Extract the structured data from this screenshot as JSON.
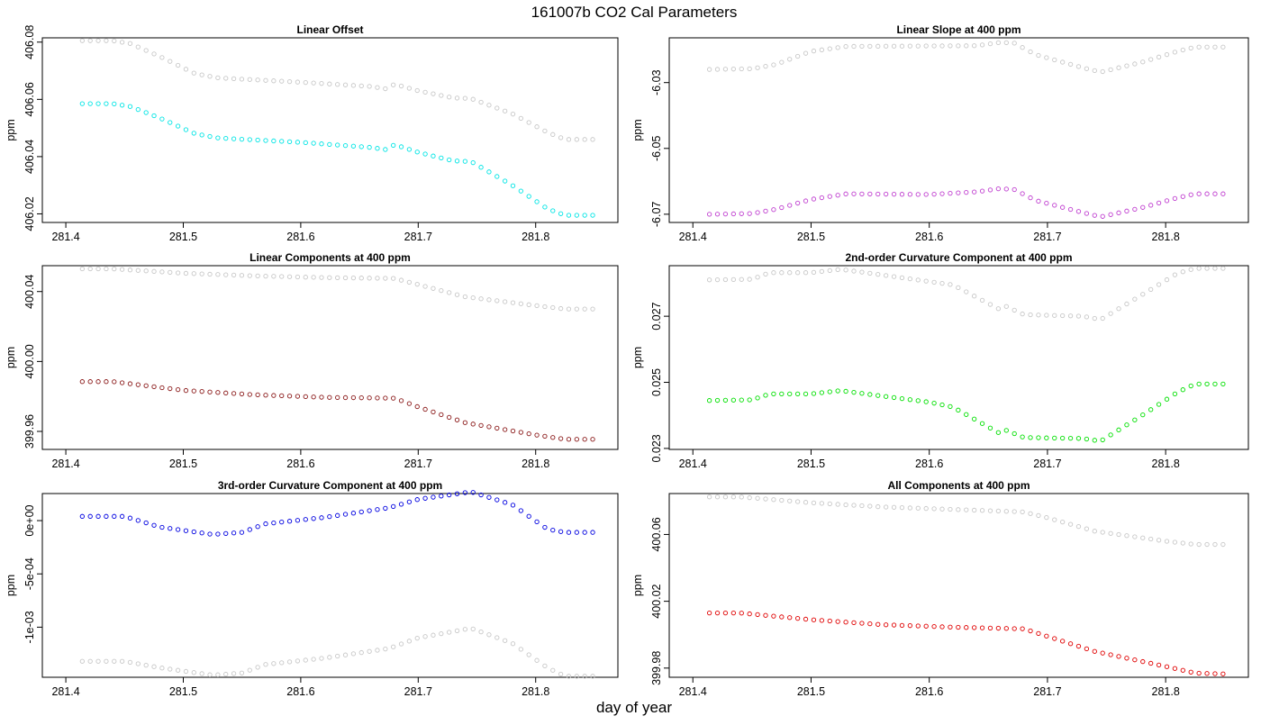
{
  "figure": {
    "title": "161007b   CO2 Cal Parameters",
    "xlabel": "day of year"
  },
  "colors": {
    "gray_series": "#c8c8c8",
    "cyan": "#00e5e5",
    "magenta": "#c040d0",
    "darkred": "#8b1a1a",
    "green": "#00e000",
    "blue": "#0000e0",
    "red": "#e00000"
  },
  "chart_data": [
    {
      "type": "scatter",
      "title": "Linear Offset",
      "ylabel": "ppm",
      "xlim": [
        281.38,
        281.87
      ],
      "ylim": [
        406.017,
        406.0815
      ],
      "x_ticks": [
        281.4,
        281.5,
        281.6,
        281.7,
        281.8
      ],
      "y_ticks": [
        406.02,
        406.04,
        406.06,
        406.08
      ],
      "y_tick_labels": [
        "406.02",
        "406.04",
        "406.06",
        "406.08"
      ],
      "series": [
        {
          "color": "gray_series",
          "x_start": 281.414,
          "x_end": 281.85,
          "x_step": 0.00679,
          "knots": [
            [
              281.414,
              406.0805
            ],
            [
              281.44,
              406.0805
            ],
            [
              281.455,
              406.0795
            ],
            [
              281.48,
              406.075
            ],
            [
              281.51,
              406.069
            ],
            [
              281.53,
              406.0675
            ],
            [
              281.6,
              406.066
            ],
            [
              281.66,
              406.0645
            ],
            [
              281.672,
              406.0637
            ],
            [
              281.68,
              406.0653
            ],
            [
              281.7,
              406.063
            ],
            [
              281.73,
              406.0605
            ],
            [
              281.745,
              406.0603
            ],
            [
              281.78,
              406.055
            ],
            [
              281.81,
              406.0485
            ],
            [
              281.825,
              406.046
            ],
            [
              281.85,
              406.046
            ]
          ]
        },
        {
          "color": "cyan",
          "x_start": 281.414,
          "x_end": 281.85,
          "x_step": 0.00679,
          "knots": [
            [
              281.414,
              406.0585
            ],
            [
              281.44,
              406.0585
            ],
            [
              281.455,
              406.0575
            ],
            [
              281.48,
              406.0535
            ],
            [
              281.51,
              406.048
            ],
            [
              281.53,
              406.0465
            ],
            [
              281.6,
              406.045
            ],
            [
              281.66,
              406.0432
            ],
            [
              281.672,
              406.0425
            ],
            [
              281.68,
              406.0442
            ],
            [
              281.7,
              406.0415
            ],
            [
              281.73,
              406.0385
            ],
            [
              281.745,
              406.0383
            ],
            [
              281.78,
              406.03
            ],
            [
              281.81,
              406.0218
            ],
            [
              281.825,
              406.0195
            ],
            [
              281.85,
              406.0195
            ]
          ]
        }
      ]
    },
    {
      "type": "scatter",
      "title": "Linear Slope at 400 ppm",
      "ylabel": "ppm",
      "xlim": [
        281.38,
        281.87
      ],
      "ylim": [
        -6.0725,
        -6.0164
      ],
      "x_ticks": [
        281.4,
        281.5,
        281.6,
        281.7,
        281.8
      ],
      "y_ticks": [
        -6.07,
        -6.05,
        -6.03
      ],
      "y_tick_labels": [
        "-6.07",
        "-6.05",
        "-6.03"
      ],
      "series": [
        {
          "color": "gray_series",
          "x_start": 281.414,
          "x_end": 281.85,
          "x_step": 0.00679,
          "knots": [
            [
              281.414,
              -6.026
            ],
            [
              281.45,
              -6.0258
            ],
            [
              281.47,
              -6.0245
            ],
            [
              281.5,
              -6.0205
            ],
            [
              281.53,
              -6.019
            ],
            [
              281.64,
              -6.0188
            ],
            [
              281.66,
              -6.0178
            ],
            [
              281.672,
              -6.018
            ],
            [
              281.69,
              -6.0215
            ],
            [
              281.73,
              -6.0255
            ],
            [
              281.745,
              -6.0268
            ],
            [
              281.78,
              -6.0238
            ],
            [
              281.81,
              -6.0205
            ],
            [
              281.825,
              -6.0192
            ],
            [
              281.85,
              -6.0192
            ]
          ]
        },
        {
          "color": "magenta",
          "x_start": 281.414,
          "x_end": 281.85,
          "x_step": 0.00679,
          "knots": [
            [
              281.414,
              -6.07
            ],
            [
              281.45,
              -6.0698
            ],
            [
              281.47,
              -6.0685
            ],
            [
              281.5,
              -6.0655
            ],
            [
              281.53,
              -6.0638
            ],
            [
              281.6,
              -6.064
            ],
            [
              281.64,
              -6.0632
            ],
            [
              281.66,
              -6.0622
            ],
            [
              281.672,
              -6.0625
            ],
            [
              281.69,
              -6.0658
            ],
            [
              281.73,
              -6.0695
            ],
            [
              281.745,
              -6.0708
            ],
            [
              281.78,
              -6.068
            ],
            [
              281.81,
              -6.065
            ],
            [
              281.825,
              -6.0638
            ],
            [
              281.85,
              -6.0638
            ]
          ]
        }
      ]
    },
    {
      "type": "scatter",
      "title": "Linear Components at 400 ppm",
      "ylabel": "ppm",
      "xlim": [
        281.38,
        281.87
      ],
      "ylim": [
        399.9497,
        400.0548
      ],
      "x_ticks": [
        281.4,
        281.5,
        281.6,
        281.7,
        281.8
      ],
      "y_ticks": [
        399.96,
        400.0,
        400.04
      ],
      "y_tick_labels": [
        "399.96",
        "400.00",
        "400.04"
      ],
      "series": [
        {
          "color": "gray_series",
          "x_start": 281.414,
          "x_end": 281.85,
          "x_step": 0.00679,
          "knots": [
            [
              281.414,
              400.053
            ],
            [
              281.44,
              400.053
            ],
            [
              281.5,
              400.0505
            ],
            [
              281.56,
              400.049
            ],
            [
              281.62,
              400.048
            ],
            [
              281.68,
              400.0475
            ],
            [
              281.7,
              400.044
            ],
            [
              281.74,
              400.037
            ],
            [
              281.8,
              400.032
            ],
            [
              281.825,
              400.03
            ],
            [
              281.85,
              400.03
            ]
          ]
        },
        {
          "color": "darkred",
          "x_start": 281.414,
          "x_end": 281.85,
          "x_step": 0.00679,
          "knots": [
            [
              281.414,
              399.9885
            ],
            [
              281.44,
              399.9885
            ],
            [
              281.5,
              399.9835
            ],
            [
              281.56,
              399.981
            ],
            [
              281.62,
              399.9795
            ],
            [
              281.68,
              399.979
            ],
            [
              281.7,
              399.974
            ],
            [
              281.74,
              399.965
            ],
            [
              281.8,
              399.958
            ],
            [
              281.825,
              399.9555
            ],
            [
              281.85,
              399.9555
            ]
          ]
        }
      ]
    },
    {
      "type": "scatter",
      "title": "2nd-order Curvature Component at 400 ppm",
      "ylabel": "ppm",
      "xlim": [
        281.38,
        281.87
      ],
      "ylim": [
        0.02297,
        0.02853
      ],
      "x_ticks": [
        281.4,
        281.5,
        281.6,
        281.7,
        281.8
      ],
      "y_ticks": [
        0.023,
        0.025,
        0.027
      ],
      "y_tick_labels": [
        "0.023",
        "0.025",
        "0.027"
      ],
      "series": [
        {
          "color": "gray_series",
          "x_start": 281.414,
          "x_end": 281.85,
          "x_step": 0.00679,
          "knots": [
            [
              281.414,
              0.0281
            ],
            [
              281.45,
              0.02812
            ],
            [
              281.465,
              0.02832
            ],
            [
              281.5,
              0.02832
            ],
            [
              281.525,
              0.02842
            ],
            [
              281.54,
              0.02835
            ],
            [
              281.6,
              0.02805
            ],
            [
              281.62,
              0.02795
            ],
            [
              281.66,
              0.0272
            ],
            [
              281.665,
              0.0273
            ],
            [
              281.68,
              0.02705
            ],
            [
              281.73,
              0.027
            ],
            [
              281.745,
              0.0269
            ],
            [
              281.78,
              0.02765
            ],
            [
              281.81,
              0.0283
            ],
            [
              281.825,
              0.02845
            ],
            [
              281.85,
              0.02845
            ]
          ]
        },
        {
          "color": "green",
          "x_start": 281.414,
          "x_end": 281.85,
          "x_step": 0.00679,
          "knots": [
            [
              281.414,
              0.02445
            ],
            [
              281.45,
              0.02447
            ],
            [
              281.465,
              0.02465
            ],
            [
              281.5,
              0.02465
            ],
            [
              281.525,
              0.02475
            ],
            [
              281.54,
              0.02468
            ],
            [
              281.6,
              0.0244
            ],
            [
              281.62,
              0.02425
            ],
            [
              281.66,
              0.02345
            ],
            [
              281.665,
              0.02355
            ],
            [
              281.68,
              0.02333
            ],
            [
              281.73,
              0.0233
            ],
            [
              281.745,
              0.02322
            ],
            [
              281.78,
              0.024
            ],
            [
              281.81,
              0.0247
            ],
            [
              281.825,
              0.02495
            ],
            [
              281.85,
              0.02495
            ]
          ]
        }
      ]
    },
    {
      "type": "scatter",
      "title": "3rd-order Curvature Component at 400 ppm",
      "ylabel": "ppm",
      "xlim": [
        281.38,
        281.87
      ],
      "ylim": [
        -0.00147,
        0.000254
      ],
      "x_ticks": [
        281.4,
        281.5,
        281.6,
        281.7,
        281.8
      ],
      "y_ticks": [
        -0.001,
        -0.0005,
        0
      ],
      "y_tick_labels": [
        "-1e-03",
        "-5e-04",
        "0e+00"
      ],
      "series": [
        {
          "color": "blue",
          "x_start": 281.414,
          "x_end": 281.85,
          "x_step": 0.00679,
          "knots": [
            [
              281.414,
              4e-05
            ],
            [
              281.45,
              4e-05
            ],
            [
              281.48,
              -6e-05
            ],
            [
              281.525,
              -0.00013
            ],
            [
              281.55,
              -0.00011
            ],
            [
              281.57,
              -3e-05
            ],
            [
              281.62,
              3e-05
            ],
            [
              281.675,
              0.00012
            ],
            [
              281.7,
              0.0002
            ],
            [
              281.745,
              0.00027
            ],
            [
              281.78,
              0.00015
            ],
            [
              281.81,
              -8e-05
            ],
            [
              281.825,
              -0.00011
            ],
            [
              281.85,
              -0.00011
            ]
          ]
        },
        {
          "color": "gray_series",
          "x_start": 281.414,
          "x_end": 281.85,
          "x_step": 0.00679,
          "knots": [
            [
              281.414,
              -0.00132
            ],
            [
              281.45,
              -0.00132
            ],
            [
              281.48,
              -0.00138
            ],
            [
              281.525,
              -0.00145
            ],
            [
              281.55,
              -0.00143
            ],
            [
              281.57,
              -0.00135
            ],
            [
              281.62,
              -0.00129
            ],
            [
              281.675,
              -0.0012
            ],
            [
              281.7,
              -0.0011
            ],
            [
              281.745,
              -0.00101
            ],
            [
              281.78,
              -0.00115
            ],
            [
              281.81,
              -0.00138
            ],
            [
              281.825,
              -0.00146
            ],
            [
              281.85,
              -0.00146
            ]
          ]
        }
      ]
    },
    {
      "type": "scatter",
      "title": "All Components at 400 ppm",
      "ylabel": "ppm",
      "xlim": [
        281.38,
        281.87
      ],
      "ylim": [
        399.9745,
        400.0845
      ],
      "x_ticks": [
        281.4,
        281.5,
        281.6,
        281.7,
        281.8
      ],
      "y_ticks": [
        399.98,
        400.02,
        400.06
      ],
      "y_tick_labels": [
        "399.98",
        "400.02",
        "400.06"
      ],
      "series": [
        {
          "color": "gray_series",
          "x_start": 281.414,
          "x_end": 281.85,
          "x_step": 0.00679,
          "knots": [
            [
              281.414,
              400.0825
            ],
            [
              281.44,
              400.0825
            ],
            [
              281.5,
              400.079
            ],
            [
              281.56,
              400.0765
            ],
            [
              281.62,
              400.075
            ],
            [
              281.68,
              400.0735
            ],
            [
              281.7,
              400.07
            ],
            [
              281.74,
              400.062
            ],
            [
              281.8,
              400.056
            ],
            [
              281.825,
              400.054
            ],
            [
              281.85,
              400.054
            ]
          ]
        },
        {
          "color": "red",
          "x_start": 281.414,
          "x_end": 281.85,
          "x_step": 0.00679,
          "knots": [
            [
              281.414,
              400.013
            ],
            [
              281.44,
              400.013
            ],
            [
              281.5,
              400.009
            ],
            [
              281.56,
              400.006
            ],
            [
              281.62,
              400.0045
            ],
            [
              281.68,
              400.0035
            ],
            [
              281.7,
              399.999
            ],
            [
              281.74,
              399.99
            ],
            [
              281.8,
              399.981
            ],
            [
              281.825,
              399.977
            ],
            [
              281.85,
              399.9765
            ]
          ]
        }
      ]
    }
  ]
}
